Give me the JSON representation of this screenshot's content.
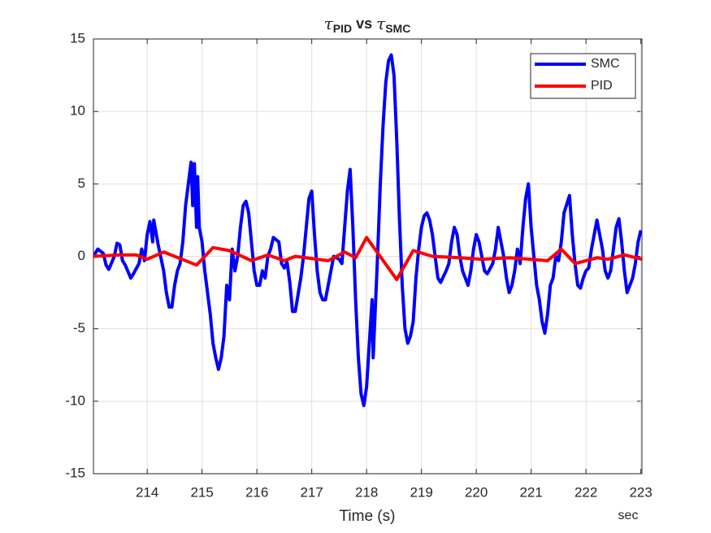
{
  "chart_data": {
    "type": "line",
    "title": [
      {
        "text": "τ"
      },
      {
        "text": "PID",
        "sub": true
      },
      {
        "text": " vs "
      },
      {
        "text": "τ"
      },
      {
        "text": "SMC",
        "sub": true
      }
    ],
    "xlabel": "Time (s)",
    "x_unit_label": "sec",
    "xlim": [
      213.02,
      223.02
    ],
    "xticks": [
      214,
      215,
      216,
      217,
      218,
      219,
      220,
      221,
      222,
      223
    ],
    "ylim": [
      -15,
      15
    ],
    "yticks": [
      -15,
      -10,
      -5,
      0,
      5,
      10,
      15
    ],
    "grid": true,
    "legend": "top-right",
    "series": [
      {
        "name": "SMC",
        "color": "#0000ff",
        "x": [
          213.02,
          213.1,
          213.2,
          213.25,
          213.3,
          213.4,
          213.45,
          213.5,
          213.55,
          213.6,
          213.7,
          213.75,
          213.85,
          213.9,
          213.95,
          214.0,
          214.05,
          214.1,
          214.12,
          214.2,
          214.3,
          214.35,
          214.4,
          214.45,
          214.5,
          214.55,
          214.6,
          214.65,
          214.7,
          214.75,
          214.8,
          214.83,
          214.86,
          214.9,
          214.92,
          214.95,
          215.0,
          215.05,
          215.1,
          215.15,
          215.2,
          215.25,
          215.3,
          215.35,
          215.4,
          215.45,
          215.5,
          215.55,
          215.6,
          215.65,
          215.7,
          215.75,
          215.8,
          215.85,
          215.9,
          215.95,
          216.0,
          216.05,
          216.1,
          216.15,
          216.2,
          216.25,
          216.3,
          216.4,
          216.45,
          216.5,
          216.55,
          216.6,
          216.65,
          216.7,
          216.8,
          216.85,
          216.9,
          216.95,
          217.0,
          217.05,
          217.1,
          217.15,
          217.2,
          217.25,
          217.3,
          217.35,
          217.4,
          217.5,
          217.55,
          217.6,
          217.65,
          217.7,
          217.75,
          217.8,
          217.85,
          217.9,
          217.95,
          218.0,
          218.05,
          218.1,
          218.12,
          218.2,
          218.25,
          218.3,
          218.35,
          218.4,
          218.45,
          218.5,
          218.55,
          218.6,
          218.65,
          218.7,
          218.75,
          218.8,
          218.85,
          218.9,
          218.95,
          219.0,
          219.05,
          219.1,
          219.15,
          219.2,
          219.25,
          219.3,
          219.35,
          219.45,
          219.5,
          219.55,
          219.6,
          219.65,
          219.7,
          219.75,
          219.8,
          219.85,
          219.9,
          219.95,
          220.0,
          220.05,
          220.1,
          220.15,
          220.2,
          220.3,
          220.35,
          220.4,
          220.45,
          220.5,
          220.55,
          220.6,
          220.65,
          220.7,
          220.75,
          220.8,
          220.85,
          220.9,
          220.95,
          221.0,
          221.05,
          221.1,
          221.15,
          221.2,
          221.25,
          221.3,
          221.35,
          221.4,
          221.45,
          221.5,
          221.55,
          221.6,
          221.7,
          221.75,
          221.8,
          221.85,
          221.9,
          221.95,
          222.0,
          222.05,
          222.1,
          222.15,
          222.2,
          222.25,
          222.3,
          222.35,
          222.4,
          222.45,
          222.5,
          222.55,
          222.6,
          222.65,
          222.7,
          222.75,
          222.8,
          222.85,
          222.9,
          222.95,
          223.0
        ],
        "values": [
          0,
          0.5,
          0.2,
          -0.6,
          -0.9,
          0,
          0.9,
          0.8,
          -0.3,
          -0.6,
          -1.5,
          -1.2,
          -0.5,
          0.5,
          -0.3,
          1.5,
          2.4,
          1,
          2.5,
          0.8,
          -1,
          -2.5,
          -3.5,
          -3.5,
          -2,
          -1,
          -0.5,
          1,
          3.5,
          5,
          6.5,
          3.5,
          6.4,
          2,
          5.5,
          2,
          1,
          -1,
          -2.5,
          -4,
          -6,
          -7,
          -7.8,
          -7,
          -5.5,
          -2,
          -3,
          0.5,
          -1,
          0,
          2,
          3.5,
          3.8,
          3,
          1,
          -1,
          -2,
          -2,
          -1,
          -1.5,
          0,
          0.5,
          1.3,
          1,
          -0.5,
          -0.8,
          -0.4,
          -1.8,
          -3.8,
          -3.8,
          -1.5,
          0,
          2,
          4,
          4.5,
          1.5,
          -1,
          -2.5,
          -3,
          -3,
          -2,
          -1,
          0,
          -0.2,
          -0.5,
          2,
          4.5,
          6,
          2,
          -3,
          -7,
          -9.5,
          -10.3,
          -9,
          -6,
          -3,
          -7,
          0,
          5,
          9,
          12,
          13.5,
          13.9,
          12.5,
          8,
          2.5,
          -2,
          -5,
          -6,
          -5.5,
          -4.5,
          -1.5,
          0.5,
          2,
          2.8,
          3,
          2.5,
          1.5,
          0,
          -1.5,
          -1.8,
          -1,
          -0.5,
          1,
          2,
          1.5,
          0,
          -1,
          -1.5,
          -2,
          -1,
          0.5,
          1.5,
          1,
          0,
          -1,
          -1.2,
          -0.5,
          0.5,
          2,
          1,
          0,
          -1.5,
          -2.5,
          -2,
          -1,
          0.5,
          -0.5,
          2,
          4,
          5,
          2,
          0,
          -2,
          -3,
          -4.5,
          -5.3,
          -4,
          -2,
          -1.5,
          0,
          -0.3,
          1,
          3,
          4.2,
          1.5,
          -0.5,
          -2,
          -2.2,
          -1.5,
          -1,
          -0.8,
          0.5,
          1.5,
          2.5,
          1.5,
          0.5,
          -1,
          -1.5,
          -1,
          0.5,
          2,
          2.6,
          1,
          -1,
          -2.5,
          -2,
          -1.5,
          -0.5,
          1,
          1.8
        ]
      },
      {
        "name": "PID",
        "color": "#ff0000",
        "x": [
          213.02,
          213.5,
          213.8,
          214.0,
          214.3,
          214.9,
          215.2,
          215.5,
          215.9,
          216.2,
          216.5,
          216.7,
          217.1,
          217.3,
          217.6,
          217.8,
          218.0,
          218.55,
          218.85,
          219.2,
          219.7,
          220.1,
          220.6,
          221.0,
          221.3,
          221.55,
          221.8,
          222.2,
          222.4,
          222.7,
          223.02
        ],
        "values": [
          0,
          0.1,
          0.1,
          -0.2,
          0.3,
          -0.6,
          0.6,
          0.4,
          -0.3,
          0.1,
          -0.3,
          0,
          -0.2,
          -0.3,
          0.3,
          -0.1,
          1.3,
          -1.6,
          0.4,
          0,
          -0.1,
          -0.2,
          -0.1,
          -0.2,
          -0.3,
          0.5,
          -0.5,
          -0.1,
          -0.2,
          0.1,
          -0.2
        ]
      }
    ]
  }
}
